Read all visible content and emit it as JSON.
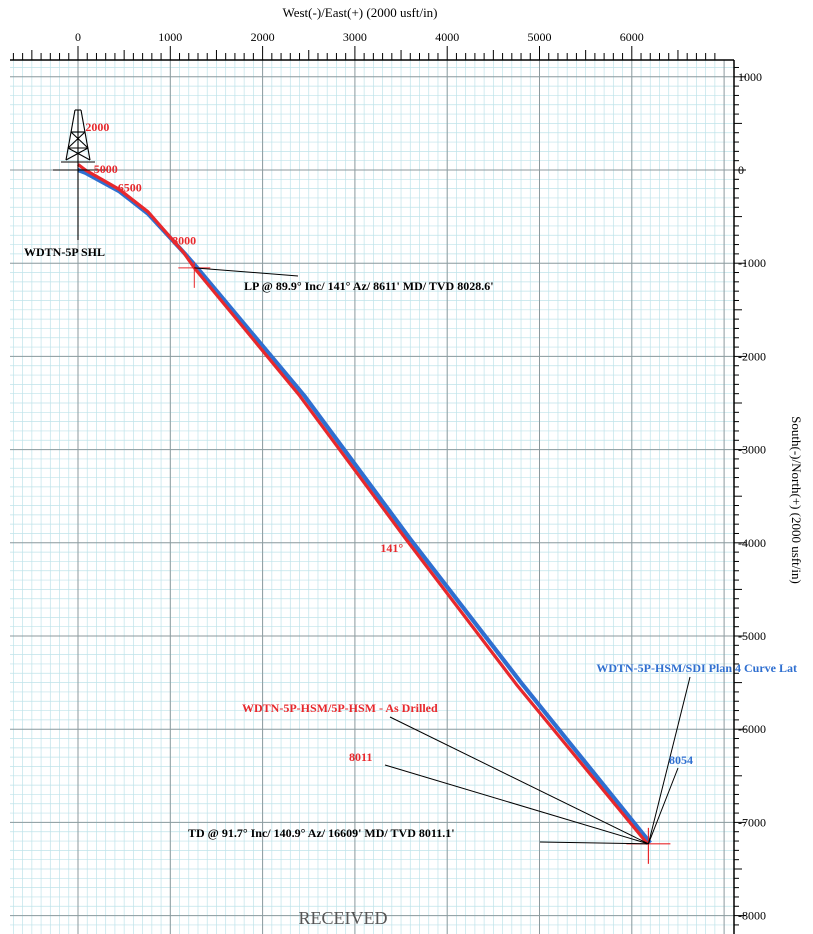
{
  "chart_data": {
    "type": "line",
    "title": "",
    "xlabel": "West(-)/East(+) (2000 usft/in)",
    "ylabel": "South(-)/North(+) (2000 usft/in)",
    "xlim": [
      -700,
      6950
    ],
    "ylim": [
      -8300,
      1150
    ],
    "x_ticks": [
      0,
      1000,
      2000,
      3000,
      4000,
      5000,
      6000
    ],
    "y_ticks": [
      1000,
      0,
      -1000,
      -2000,
      -3000,
      -4000,
      -5000,
      -6000,
      -7000,
      -8000
    ],
    "grid": true,
    "series": [
      {
        "name": "WDTN-5P-HSM/SDI Plan 4 Curve Lat",
        "color": "#2f6fd0",
        "x": [
          0,
          80,
          450,
          760,
          1160,
          1300,
          2450,
          3600,
          4800,
          6200
        ],
        "y": [
          0,
          -30,
          -230,
          -470,
          -900,
          -1060,
          -2420,
          -3960,
          -5500,
          -7220
        ]
      },
      {
        "name": "WDTN-5P-HSM/5P-HSM - As Drilled",
        "color": "#e8282c",
        "x": [
          0,
          80,
          450,
          760,
          1140,
          1260,
          2400,
          3560,
          4750,
          6170
        ],
        "y": [
          60,
          0,
          -210,
          -450,
          -880,
          -1050,
          -2420,
          -3970,
          -5520,
          -7230
        ]
      }
    ],
    "md_labels": [
      {
        "text": "2000",
        "x": 210,
        "y": 420
      },
      {
        "text": "5000",
        "x": 300,
        "y": -30
      },
      {
        "text": "6500",
        "x": 560,
        "y": -230
      },
      {
        "text": "8000",
        "x": 1150,
        "y": -800
      },
      {
        "text": "141°",
        "x": 3400,
        "y": -4100
      }
    ],
    "annotations": {
      "shl": {
        "text": "WDTN-5P  SHL",
        "x": 0,
        "y": 0
      },
      "lp": {
        "text": "LP @ 89.9° Inc/ 141° Az/  8611' MD/ TVD 8028.6'",
        "x": 1260,
        "y": -1050
      },
      "td": {
        "text": "TD @ 91.7° Inc/ 140.9° Az/ 16609' MD/ TVD 8011.1'",
        "x": 6180,
        "y": -7230
      },
      "plan_legend": "WDTN-5P-HSM/SDI Plan 4 Curve Lat",
      "drilled_legend": "WDTN-5P-HSM/5P-HSM - As Drilled",
      "tvd_drilled": "8011",
      "tvd_plan": "8054"
    },
    "stamp": "RECEIVED"
  }
}
